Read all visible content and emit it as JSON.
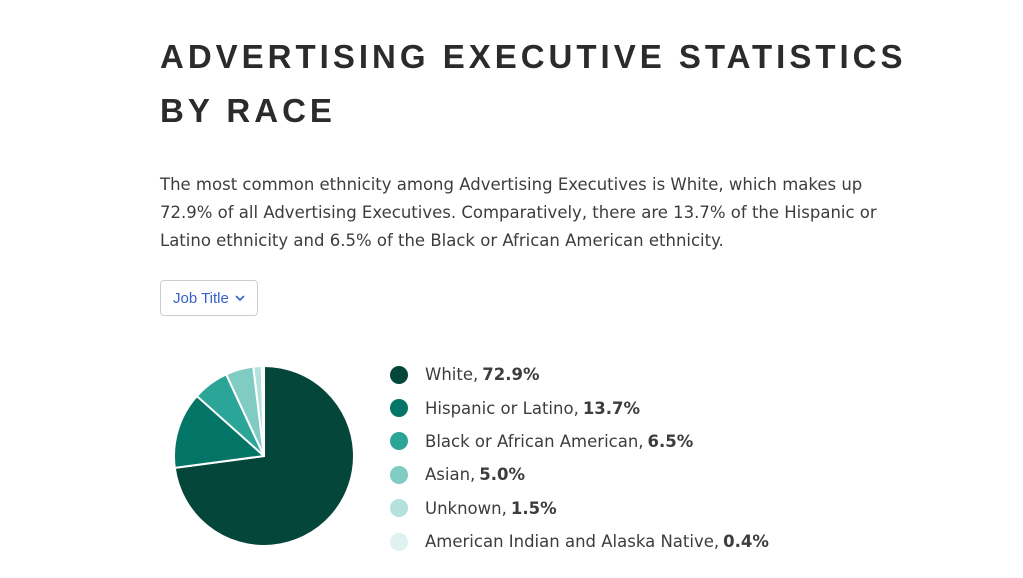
{
  "header": {
    "title": "ADVERTISING EXECUTIVE STATISTICS BY RACE"
  },
  "description": "The most common ethnicity among Advertising Executives is White, which makes up 72.9% of all Advertising Executives. Comparatively, there are 13.7% of the Hispanic or Latino ethnicity and 6.5% of the Black or African American ethnicity.",
  "filter": {
    "label": "Job Title",
    "icon": "chevron-down-icon"
  },
  "chart_data": {
    "type": "pie",
    "title": "",
    "legend_position": "right",
    "slices": [
      {
        "label": "White",
        "value": 72.9,
        "value_text": "72.9%",
        "color": "#04473a"
      },
      {
        "label": "Hispanic or Latino",
        "value": 13.7,
        "value_text": "13.7%",
        "color": "#027566"
      },
      {
        "label": "Black or African American",
        "value": 6.5,
        "value_text": "6.5%",
        "color": "#2aa597"
      },
      {
        "label": "Asian",
        "value": 5.0,
        "value_text": "5.0%",
        "color": "#80cbc2"
      },
      {
        "label": "Unknown",
        "value": 1.5,
        "value_text": "1.5%",
        "color": "#b4e1dc"
      },
      {
        "label": "American Indian and Alaska Native",
        "value": 0.4,
        "value_text": "0.4%",
        "color": "#dff2f0"
      }
    ]
  }
}
